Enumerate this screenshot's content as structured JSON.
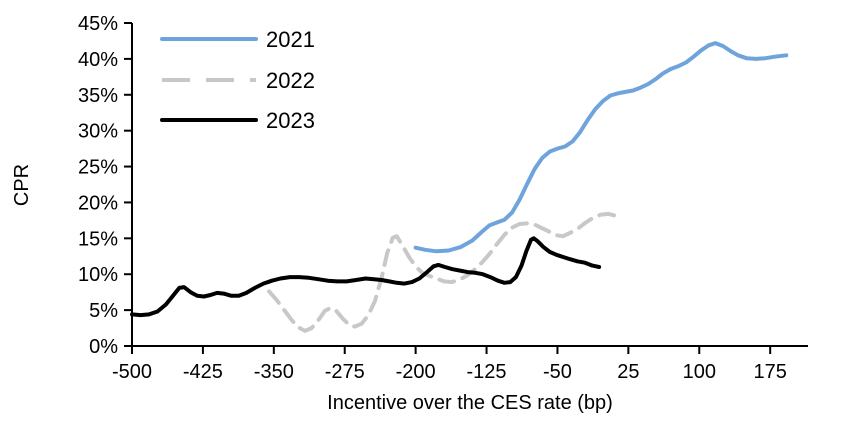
{
  "chart_data": {
    "type": "line",
    "title": "",
    "xlabel": "Incentive over the CES rate (bp)",
    "ylabel": "CPR",
    "x_ticks": [
      -500,
      -425,
      -350,
      -275,
      -200,
      -125,
      -50,
      25,
      100,
      175
    ],
    "y_ticks": [
      "0%",
      "5%",
      "10%",
      "15%",
      "20%",
      "25%",
      "30%",
      "35%",
      "40%",
      "45%"
    ],
    "xlim": [
      -500,
      215
    ],
    "ylim": [
      0,
      45
    ],
    "grid": false,
    "legend_position": "top-left",
    "axis_color": "#000000",
    "series": [
      {
        "name": "2021",
        "color": "#6EA4DB",
        "style": "solid",
        "points": [
          [
            -200,
            13.7
          ],
          [
            -190,
            13.4
          ],
          [
            -178,
            13.2
          ],
          [
            -165,
            13.3
          ],
          [
            -152,
            13.8
          ],
          [
            -140,
            14.7
          ],
          [
            -130,
            15.9
          ],
          [
            -122,
            16.8
          ],
          [
            -114,
            17.2
          ],
          [
            -106,
            17.6
          ],
          [
            -98,
            18.6
          ],
          [
            -90,
            20.4
          ],
          [
            -82,
            22.6
          ],
          [
            -74,
            24.7
          ],
          [
            -66,
            26.2
          ],
          [
            -58,
            27.1
          ],
          [
            -50,
            27.5
          ],
          [
            -42,
            27.8
          ],
          [
            -34,
            28.5
          ],
          [
            -26,
            29.8
          ],
          [
            -18,
            31.5
          ],
          [
            -10,
            33.0
          ],
          [
            -2,
            34.1
          ],
          [
            6,
            34.9
          ],
          [
            14,
            35.2
          ],
          [
            22,
            35.4
          ],
          [
            30,
            35.6
          ],
          [
            38,
            36.0
          ],
          [
            46,
            36.5
          ],
          [
            54,
            37.2
          ],
          [
            62,
            38.0
          ],
          [
            70,
            38.6
          ],
          [
            78,
            39.0
          ],
          [
            86,
            39.5
          ],
          [
            94,
            40.3
          ],
          [
            102,
            41.2
          ],
          [
            110,
            41.9
          ],
          [
            117,
            42.2
          ],
          [
            125,
            41.8
          ],
          [
            133,
            41.1
          ],
          [
            141,
            40.5
          ],
          [
            150,
            40.1
          ],
          [
            160,
            40.0
          ],
          [
            170,
            40.1
          ],
          [
            180,
            40.3
          ],
          [
            192,
            40.5
          ]
        ]
      },
      {
        "name": "2022",
        "color": "#C8C8C8",
        "style": "dashed",
        "points": [
          [
            -355,
            7.6
          ],
          [
            -347,
            6.4
          ],
          [
            -339,
            5.0
          ],
          [
            -331,
            3.6
          ],
          [
            -324,
            2.6
          ],
          [
            -317,
            2.1
          ],
          [
            -310,
            2.5
          ],
          [
            -303,
            3.6
          ],
          [
            -296,
            4.9
          ],
          [
            -290,
            5.3
          ],
          [
            -284,
            4.9
          ],
          [
            -277,
            3.8
          ],
          [
            -270,
            2.9
          ],
          [
            -264,
            2.7
          ],
          [
            -257,
            3.1
          ],
          [
            -250,
            4.3
          ],
          [
            -243,
            6.3
          ],
          [
            -236,
            9.5
          ],
          [
            -230,
            13.0
          ],
          [
            -224,
            15.1
          ],
          [
            -220,
            15.3
          ],
          [
            -214,
            14.0
          ],
          [
            -207,
            12.4
          ],
          [
            -200,
            11.1
          ],
          [
            -193,
            10.2
          ],
          [
            -186,
            9.8
          ],
          [
            -178,
            9.4
          ],
          [
            -170,
            9.0
          ],
          [
            -162,
            8.9
          ],
          [
            -154,
            9.2
          ],
          [
            -146,
            9.8
          ],
          [
            -138,
            10.6
          ],
          [
            -130,
            11.6
          ],
          [
            -122,
            12.8
          ],
          [
            -114,
            14.2
          ],
          [
            -106,
            15.5
          ],
          [
            -98,
            16.5
          ],
          [
            -90,
            17.0
          ],
          [
            -82,
            17.1
          ],
          [
            -74,
            16.9
          ],
          [
            -66,
            16.4
          ],
          [
            -58,
            15.9
          ],
          [
            -50,
            15.4
          ],
          [
            -44,
            15.3
          ],
          [
            -36,
            15.8
          ],
          [
            -28,
            16.4
          ],
          [
            -20,
            17.2
          ],
          [
            -12,
            17.9
          ],
          [
            -4,
            18.3
          ],
          [
            4,
            18.4
          ],
          [
            10,
            18.2
          ],
          [
            15,
            17.9
          ]
        ]
      },
      {
        "name": "2023",
        "color": "#000000",
        "style": "solid",
        "points": [
          [
            -500,
            4.4
          ],
          [
            -491,
            4.3
          ],
          [
            -482,
            4.4
          ],
          [
            -473,
            4.8
          ],
          [
            -464,
            5.8
          ],
          [
            -456,
            7.1
          ],
          [
            -450,
            8.1
          ],
          [
            -445,
            8.2
          ],
          [
            -438,
            7.5
          ],
          [
            -431,
            7.0
          ],
          [
            -424,
            6.9
          ],
          [
            -417,
            7.1
          ],
          [
            -410,
            7.4
          ],
          [
            -403,
            7.3
          ],
          [
            -395,
            7.0
          ],
          [
            -387,
            7.0
          ],
          [
            -379,
            7.4
          ],
          [
            -370,
            8.1
          ],
          [
            -361,
            8.7
          ],
          [
            -352,
            9.1
          ],
          [
            -343,
            9.4
          ],
          [
            -333,
            9.6
          ],
          [
            -323,
            9.6
          ],
          [
            -313,
            9.5
          ],
          [
            -303,
            9.3
          ],
          [
            -293,
            9.1
          ],
          [
            -283,
            9.0
          ],
          [
            -273,
            9.0
          ],
          [
            -263,
            9.2
          ],
          [
            -253,
            9.4
          ],
          [
            -244,
            9.3
          ],
          [
            -236,
            9.2
          ],
          [
            -228,
            9.0
          ],
          [
            -220,
            8.8
          ],
          [
            -212,
            8.7
          ],
          [
            -204,
            8.9
          ],
          [
            -196,
            9.4
          ],
          [
            -188,
            10.3
          ],
          [
            -181,
            11.1
          ],
          [
            -176,
            11.3
          ],
          [
            -169,
            11.0
          ],
          [
            -161,
            10.7
          ],
          [
            -153,
            10.5
          ],
          [
            -145,
            10.3
          ],
          [
            -137,
            10.2
          ],
          [
            -129,
            10.0
          ],
          [
            -121,
            9.6
          ],
          [
            -113,
            9.1
          ],
          [
            -106,
            8.8
          ],
          [
            -100,
            8.9
          ],
          [
            -94,
            9.6
          ],
          [
            -88,
            11.2
          ],
          [
            -83,
            13.2
          ],
          [
            -78,
            14.8
          ],
          [
            -75,
            15.0
          ],
          [
            -71,
            14.6
          ],
          [
            -65,
            13.8
          ],
          [
            -58,
            13.1
          ],
          [
            -51,
            12.7
          ],
          [
            -44,
            12.4
          ],
          [
            -37,
            12.1
          ],
          [
            -29,
            11.8
          ],
          [
            -21,
            11.6
          ],
          [
            -13,
            11.2
          ],
          [
            -6,
            11.0
          ]
        ]
      }
    ]
  }
}
